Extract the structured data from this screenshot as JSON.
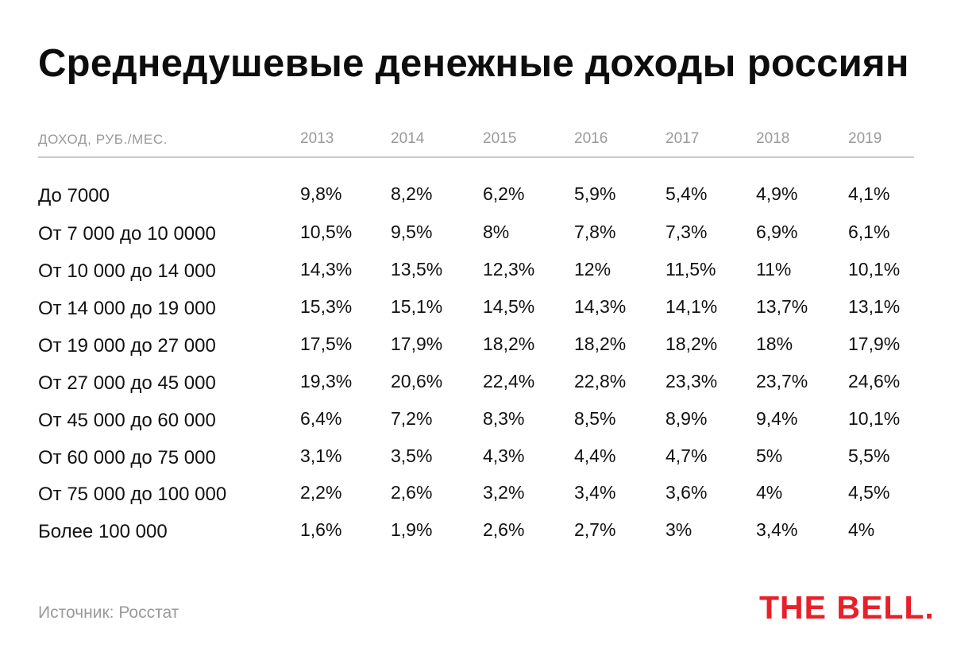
{
  "title": "Среднедушевые денежные доходы россиян",
  "source": "Источник: Росстат",
  "brand": {
    "text": "THE BELL.",
    "color": "#e8202a"
  },
  "chart_data": {
    "type": "table",
    "title": "Среднедушевые денежные доходы россиян",
    "row_header": "ДОХОД, РУБ./МЕС.",
    "columns": [
      "2013",
      "2014",
      "2015",
      "2016",
      "2017",
      "2018",
      "2019"
    ],
    "rows": [
      {
        "label": "До 7000",
        "values": [
          "9,8%",
          "8,2%",
          "6,2%",
          "5,9%",
          "5,4%",
          "4,9%",
          "4,1%"
        ]
      },
      {
        "label": "От 7 000 до 10 0000",
        "values": [
          "10,5%",
          "9,5%",
          "8%",
          "7,8%",
          "7,3%",
          "6,9%",
          "6,1%"
        ]
      },
      {
        "label": "От 10 000 до 14 000",
        "values": [
          "14,3%",
          "13,5%",
          "12,3%",
          "12%",
          "11,5%",
          "11%",
          "10,1%"
        ]
      },
      {
        "label": "От 14 000 до 19 000",
        "values": [
          "15,3%",
          "15,1%",
          "14,5%",
          "14,3%",
          "14,1%",
          "13,7%",
          "13,1%"
        ]
      },
      {
        "label": "От 19 000 до 27 000",
        "values": [
          "17,5%",
          "17,9%",
          "18,2%",
          "18,2%",
          "18,2%",
          "18%",
          "17,9%"
        ]
      },
      {
        "label": "От 27 000 до 45 000",
        "values": [
          "19,3%",
          "20,6%",
          "22,4%",
          "22,8%",
          "23,3%",
          "23,7%",
          "24,6%"
        ]
      },
      {
        "label": "От 45 000 до 60 000",
        "values": [
          "6,4%",
          "7,2%",
          "8,3%",
          "8,5%",
          "8,9%",
          "9,4%",
          "10,1%"
        ]
      },
      {
        "label": "От 60 000 до 75 000",
        "values": [
          "3,1%",
          "3,5%",
          "4,3%",
          "4,4%",
          "4,7%",
          "5%",
          "5,5%"
        ]
      },
      {
        "label": "От 75 000 до 100 000",
        "values": [
          "2,2%",
          "2,6%",
          "3,2%",
          "3,4%",
          "3,6%",
          "4%",
          "4,5%"
        ]
      },
      {
        "label": "Более 100 000",
        "values": [
          "1,6%",
          "1,9%",
          "2,6%",
          "2,7%",
          "3%",
          "3,4%",
          "4%"
        ]
      }
    ]
  }
}
